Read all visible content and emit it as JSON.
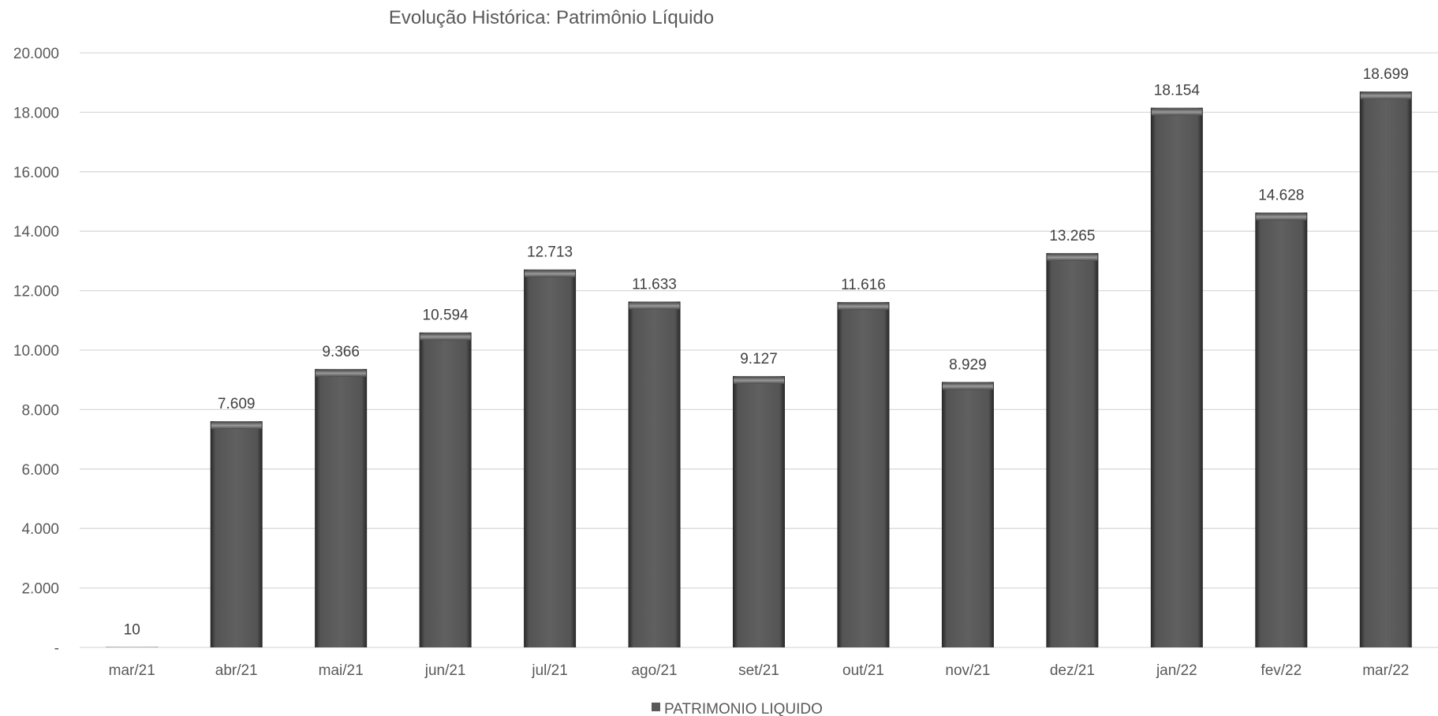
{
  "chart_data": {
    "type": "bar",
    "title": "Evolução Histórica: Patrimônio Líquido",
    "xlabel": "",
    "ylabel": "",
    "categories": [
      "mar/21",
      "abr/21",
      "mai/21",
      "jun/21",
      "jul/21",
      "ago/21",
      "set/21",
      "out/21",
      "nov/21",
      "dez/21",
      "jan/22",
      "fev/22",
      "mar/22"
    ],
    "series": [
      {
        "name": "PATRIMONIO LIQUIDO",
        "values": [
          10,
          7609,
          9366,
          10594,
          12713,
          11633,
          9127,
          11616,
          8929,
          13265,
          18154,
          14628,
          18699
        ],
        "data_labels": [
          "10",
          "7.609",
          "9.366",
          "10.594",
          "12.713",
          "11.633",
          "9.127",
          "11.616",
          "8.929",
          "13.265",
          "18.154",
          "14.628",
          "18.699"
        ],
        "color": "#5a5a5a"
      }
    ],
    "ylim": [
      0,
      20000
    ],
    "y_ticks": [
      0,
      2000,
      4000,
      6000,
      8000,
      10000,
      12000,
      14000,
      16000,
      18000,
      20000
    ],
    "y_tick_labels": [
      "-",
      "2.000",
      "4.000",
      "6.000",
      "8.000",
      "10.000",
      "12.000",
      "14.000",
      "16.000",
      "18.000",
      "20.000"
    ],
    "grid": true,
    "legend_position": "bottom"
  }
}
